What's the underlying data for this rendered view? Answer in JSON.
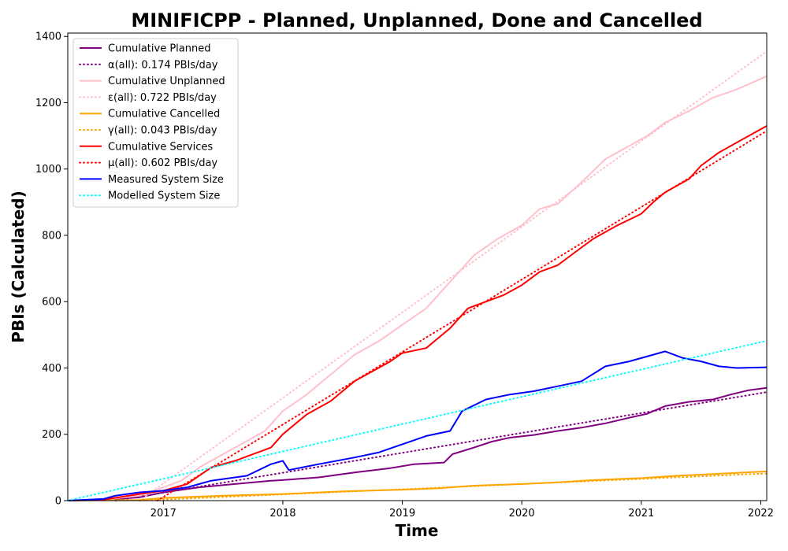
{
  "chart_data": {
    "type": "line",
    "title": "MINIFICPP - Planned, Unplanned, Done  and Cancelled",
    "xlabel": "Time",
    "ylabel": "PBIs (Calculated)",
    "xlim": [
      2016.2,
      2022.05
    ],
    "ylim": [
      0,
      1410
    ],
    "x_ticks": [
      {
        "value": 2017,
        "label": "2017"
      },
      {
        "value": 2018,
        "label": "2018"
      },
      {
        "value": 2019,
        "label": "2019"
      },
      {
        "value": 2020,
        "label": "2020"
      },
      {
        "value": 2021,
        "label": "2021"
      },
      {
        "value": 2022,
        "label": "2022"
      }
    ],
    "y_ticks": [
      {
        "value": 0,
        "label": "0"
      },
      {
        "value": 200,
        "label": "200"
      },
      {
        "value": 400,
        "label": "400"
      },
      {
        "value": 600,
        "label": "600"
      },
      {
        "value": 800,
        "label": "800"
      },
      {
        "value": 1000,
        "label": "1000"
      },
      {
        "value": 1200,
        "label": "1200"
      },
      {
        "value": 1400,
        "label": "1400"
      }
    ],
    "grid": false,
    "legend_position": "top-left",
    "series": [
      {
        "name": "Cumulative Planned",
        "color": "#800080",
        "style": "solid",
        "points": [
          [
            2016.2,
            0
          ],
          [
            2016.5,
            2
          ],
          [
            2016.8,
            10
          ],
          [
            2017.0,
            25
          ],
          [
            2017.3,
            40
          ],
          [
            2017.6,
            50
          ],
          [
            2017.9,
            60
          ],
          [
            2018.0,
            62
          ],
          [
            2018.3,
            70
          ],
          [
            2018.6,
            85
          ],
          [
            2018.9,
            98
          ],
          [
            2019.1,
            110
          ],
          [
            2019.35,
            115
          ],
          [
            2019.42,
            140
          ],
          [
            2019.6,
            160
          ],
          [
            2019.75,
            178
          ],
          [
            2019.9,
            190
          ],
          [
            2020.1,
            198
          ],
          [
            2020.3,
            210
          ],
          [
            2020.5,
            220
          ],
          [
            2020.7,
            233
          ],
          [
            2020.9,
            250
          ],
          [
            2021.05,
            262
          ],
          [
            2021.2,
            285
          ],
          [
            2021.4,
            298
          ],
          [
            2021.6,
            305
          ],
          [
            2021.75,
            320
          ],
          [
            2021.9,
            333
          ],
          [
            2022.05,
            340
          ]
        ]
      },
      {
        "name": "α(all): 0.174 PBIs/day",
        "color": "#800080",
        "style": "dotted",
        "points": [
          [
            2016.6,
            0
          ],
          [
            2022.05,
            327
          ]
        ]
      },
      {
        "name": "Cumulative Unplanned",
        "color": "#ffc0cb",
        "style": "solid",
        "points": [
          [
            2016.2,
            0
          ],
          [
            2016.5,
            3
          ],
          [
            2016.8,
            15
          ],
          [
            2017.0,
            40
          ],
          [
            2017.15,
            60
          ],
          [
            2017.3,
            100
          ],
          [
            2017.5,
            140
          ],
          [
            2017.7,
            180
          ],
          [
            2017.85,
            210
          ],
          [
            2018.0,
            270
          ],
          [
            2018.2,
            320
          ],
          [
            2018.4,
            380
          ],
          [
            2018.6,
            440
          ],
          [
            2018.8,
            480
          ],
          [
            2019.0,
            530
          ],
          [
            2019.2,
            580
          ],
          [
            2019.4,
            660
          ],
          [
            2019.6,
            740
          ],
          [
            2019.8,
            790
          ],
          [
            2020.0,
            830
          ],
          [
            2020.15,
            880
          ],
          [
            2020.3,
            895
          ],
          [
            2020.5,
            960
          ],
          [
            2020.7,
            1030
          ],
          [
            2020.9,
            1070
          ],
          [
            2021.05,
            1100
          ],
          [
            2021.2,
            1140
          ],
          [
            2021.4,
            1175
          ],
          [
            2021.6,
            1215
          ],
          [
            2021.8,
            1240
          ],
          [
            2022.05,
            1280
          ]
        ]
      },
      {
        "name": "ε(all): 0.722 PBIs/day",
        "color": "#ffc0cb",
        "style": "dotted",
        "points": [
          [
            2016.8,
            0
          ],
          [
            2022.05,
            1355
          ]
        ]
      },
      {
        "name": "Cumulative Cancelled",
        "color": "#ffa500",
        "style": "solid",
        "points": [
          [
            2016.2,
            0
          ],
          [
            2016.8,
            2
          ],
          [
            2017.0,
            8
          ],
          [
            2017.5,
            15
          ],
          [
            2018.0,
            20
          ],
          [
            2018.5,
            28
          ],
          [
            2019.0,
            33
          ],
          [
            2019.3,
            37
          ],
          [
            2019.6,
            45
          ],
          [
            2020.0,
            50
          ],
          [
            2020.3,
            55
          ],
          [
            2020.6,
            62
          ],
          [
            2021.0,
            68
          ],
          [
            2021.3,
            75
          ],
          [
            2021.6,
            80
          ],
          [
            2022.05,
            88
          ]
        ]
      },
      {
        "name": "γ(all): 0.043 PBIs/day",
        "color": "#ffa500",
        "style": "dotted",
        "points": [
          [
            2016.8,
            0
          ],
          [
            2022.05,
            82
          ]
        ]
      },
      {
        "name": "Cumulative Services",
        "color": "#ff0000",
        "style": "solid",
        "points": [
          [
            2016.2,
            0
          ],
          [
            2016.5,
            3
          ],
          [
            2016.8,
            20
          ],
          [
            2017.0,
            30
          ],
          [
            2017.2,
            50
          ],
          [
            2017.4,
            100
          ],
          [
            2017.6,
            120
          ],
          [
            2017.9,
            160
          ],
          [
            2018.0,
            200
          ],
          [
            2018.2,
            260
          ],
          [
            2018.4,
            300
          ],
          [
            2018.6,
            360
          ],
          [
            2018.75,
            390
          ],
          [
            2018.9,
            420
          ],
          [
            2019.0,
            445
          ],
          [
            2019.2,
            460
          ],
          [
            2019.4,
            520
          ],
          [
            2019.55,
            580
          ],
          [
            2019.7,
            600
          ],
          [
            2019.85,
            620
          ],
          [
            2020.0,
            650
          ],
          [
            2020.15,
            690
          ],
          [
            2020.3,
            710
          ],
          [
            2020.45,
            750
          ],
          [
            2020.6,
            790
          ],
          [
            2020.8,
            830
          ],
          [
            2021.0,
            865
          ],
          [
            2021.1,
            900
          ],
          [
            2021.2,
            930
          ],
          [
            2021.4,
            970
          ],
          [
            2021.5,
            1010
          ],
          [
            2021.65,
            1050
          ],
          [
            2021.85,
            1090
          ],
          [
            2022.05,
            1130
          ]
        ]
      },
      {
        "name": "μ(all): 0.602 PBIs/day",
        "color": "#ff0000",
        "style": "dotted",
        "points": [
          [
            2016.95,
            0
          ],
          [
            2022.05,
            1115
          ]
        ]
      },
      {
        "name": "Measured System Size",
        "color": "#0000ff",
        "style": "solid",
        "points": [
          [
            2016.2,
            0
          ],
          [
            2016.5,
            5
          ],
          [
            2016.6,
            15
          ],
          [
            2016.8,
            25
          ],
          [
            2017.0,
            30
          ],
          [
            2017.2,
            40
          ],
          [
            2017.4,
            60
          ],
          [
            2017.7,
            75
          ],
          [
            2017.9,
            110
          ],
          [
            2018.0,
            120
          ],
          [
            2018.05,
            92
          ],
          [
            2018.3,
            110
          ],
          [
            2018.6,
            130
          ],
          [
            2018.8,
            145
          ],
          [
            2019.0,
            170
          ],
          [
            2019.2,
            195
          ],
          [
            2019.4,
            210
          ],
          [
            2019.5,
            270
          ],
          [
            2019.7,
            305
          ],
          [
            2019.9,
            320
          ],
          [
            2020.1,
            330
          ],
          [
            2020.3,
            345
          ],
          [
            2020.5,
            360
          ],
          [
            2020.7,
            405
          ],
          [
            2020.9,
            420
          ],
          [
            2021.1,
            440
          ],
          [
            2021.2,
            450
          ],
          [
            2021.35,
            430
          ],
          [
            2021.5,
            420
          ],
          [
            2021.65,
            405
          ],
          [
            2021.8,
            400
          ],
          [
            2022.05,
            402
          ]
        ]
      },
      {
        "name": "Modelled System Size",
        "color": "#00ffff",
        "style": "dotted",
        "points": [
          [
            2016.2,
            0
          ],
          [
            2022.05,
            482
          ]
        ]
      }
    ]
  }
}
